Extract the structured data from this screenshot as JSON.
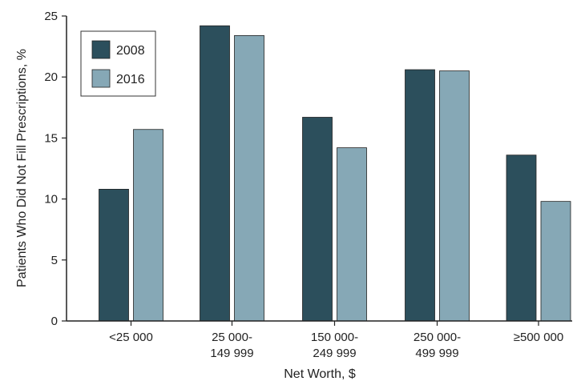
{
  "chart_data": {
    "type": "bar",
    "title": "",
    "xlabel": "Net Worth, $",
    "ylabel": "Patients Who Did Not Fill Prescriptions, %",
    "ylim": [
      0,
      25
    ],
    "yticks": [
      "0",
      "5",
      "10",
      "15",
      "20",
      "25"
    ],
    "categories": [
      [
        "<25 000"
      ],
      [
        "25 000-",
        "149 999"
      ],
      [
        "150 000-",
        "249 999"
      ],
      [
        "250 000-",
        "499 999"
      ],
      [
        "≥500 000"
      ]
    ],
    "series": [
      {
        "name": "2008",
        "color": "#2c4f5c",
        "values": [
          10.8,
          24.2,
          16.7,
          20.6,
          13.6
        ]
      },
      {
        "name": "2016",
        "color": "#86a8b6",
        "values": [
          15.7,
          23.4,
          14.2,
          20.5,
          9.8
        ]
      }
    ],
    "grid": false,
    "legend": "top-left"
  }
}
